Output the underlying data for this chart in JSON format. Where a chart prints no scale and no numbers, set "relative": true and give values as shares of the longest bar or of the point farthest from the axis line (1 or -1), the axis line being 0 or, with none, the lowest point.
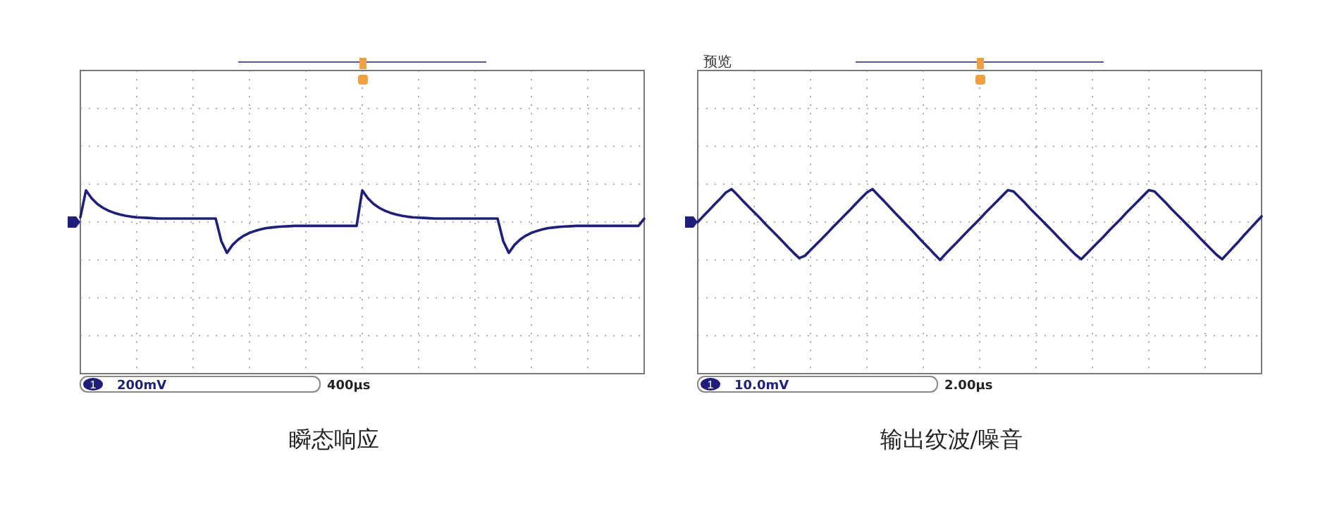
{
  "chart_data": [
    {
      "type": "line",
      "title": "瞬态响应",
      "relative": true,
      "grid": true,
      "annotations": [
        "1",
        "200mV",
        "400µs"
      ],
      "categories": [
        null,
        null,
        null,
        null,
        null,
        null,
        null,
        null,
        null,
        null,
        null,
        null,
        null,
        null,
        null,
        null,
        null,
        null,
        null,
        null,
        null,
        null,
        null,
        null,
        null,
        null,
        null,
        null,
        null,
        null,
        null,
        null,
        null,
        null,
        null,
        null,
        null,
        null,
        null,
        null,
        null,
        null,
        null,
        null,
        null,
        null,
        null,
        null,
        null,
        null,
        null,
        null,
        null,
        null,
        null,
        null,
        null,
        null,
        null,
        null,
        null,
        null,
        null,
        null,
        null,
        null,
        null,
        null,
        null,
        null,
        null,
        null,
        null,
        null,
        null,
        null,
        null,
        null,
        null,
        null,
        null,
        null,
        null,
        null,
        null,
        null,
        null,
        null,
        null,
        null,
        null,
        null,
        null,
        null,
        null,
        null,
        null,
        null,
        null,
        null,
        null
      ],
      "series": [
        {
          "color": "#1f1f7a",
          "values": [
            0.15,
            1,
            0.75,
            0.57,
            0.45,
            0.36,
            0.29,
            0.24,
            0.2,
            0.17,
            0.15,
            0.14,
            0.13,
            0.12,
            0.11,
            0.11,
            0.11,
            0.11,
            0.11,
            0.11,
            0.11,
            0.11,
            0.11,
            0.11,
            0.11,
            -0.6,
            -0.97,
            -0.72,
            -0.55,
            -0.43,
            -0.34,
            -0.28,
            -0.23,
            -0.19,
            -0.17,
            -0.15,
            -0.14,
            -0.13,
            -0.12,
            -0.12,
            -0.12,
            -0.12,
            -0.12,
            -0.12,
            -0.12,
            -0.12,
            -0.12,
            -0.12,
            -0.12,
            -0.12,
            1,
            0.75,
            0.57,
            0.45,
            0.36,
            0.29,
            0.24,
            0.2,
            0.17,
            0.15,
            0.14,
            0.13,
            0.12,
            0.11,
            0.11,
            0.11,
            0.11,
            0.11,
            0.11,
            0.11,
            0.11,
            0.11,
            0.11,
            0.11,
            0.11,
            -0.6,
            -0.97,
            -0.72,
            -0.55,
            -0.43,
            -0.34,
            -0.28,
            -0.23,
            -0.19,
            -0.17,
            -0.15,
            -0.14,
            -0.13,
            -0.12,
            -0.12,
            -0.12,
            -0.12,
            -0.12,
            -0.12,
            -0.12,
            -0.12,
            -0.12,
            -0.12,
            -0.12,
            -0.12,
            0.11
          ]
        }
      ]
    },
    {
      "type": "line",
      "title": "输出纹波/噪音",
      "relative": true,
      "grid": true,
      "annotations": [
        "预览",
        "1",
        "10.0mV",
        "2.00µs"
      ],
      "categories": [
        null,
        null,
        null,
        null,
        null,
        null,
        null,
        null,
        null,
        null,
        null,
        null,
        null,
        null,
        null,
        null,
        null,
        null,
        null,
        null,
        null,
        null,
        null,
        null,
        null,
        null,
        null,
        null,
        null,
        null,
        null,
        null,
        null,
        null,
        null,
        null,
        null,
        null,
        null,
        null,
        null,
        null,
        null,
        null,
        null,
        null,
        null,
        null,
        null,
        null,
        null,
        null,
        null,
        null,
        null,
        null,
        null,
        null,
        null,
        null,
        null,
        null,
        null,
        null,
        null,
        null,
        null,
        null,
        null,
        null,
        null,
        null,
        null,
        null,
        null,
        null,
        null,
        null,
        null,
        null,
        null,
        null,
        null,
        null,
        null,
        null,
        null,
        null,
        null,
        null,
        null,
        null,
        null,
        null,
        null,
        null,
        null,
        null,
        null,
        null,
        null
      ],
      "series": [
        {
          "color": "#1f1f7a",
          "values": [
            0,
            0.16,
            0.31,
            0.47,
            0.62,
            0.78,
            0.87,
            0.72,
            0.56,
            0.41,
            0.26,
            0.11,
            -0.05,
            -0.2,
            -0.35,
            -0.5,
            -0.66,
            -0.81,
            -0.95,
            -0.89,
            -0.74,
            -0.59,
            -0.44,
            -0.29,
            -0.13,
            0.02,
            0.17,
            0.32,
            0.48,
            0.63,
            0.78,
            0.87,
            0.71,
            0.56,
            0.4,
            0.24,
            0.09,
            -0.07,
            -0.22,
            -0.38,
            -0.54,
            -0.69,
            -0.85,
            -1,
            -0.83,
            -0.68,
            -0.53,
            -0.37,
            -0.22,
            -0.07,
            0.08,
            0.24,
            0.39,
            0.54,
            0.69,
            0.84,
            0.81,
            0.66,
            0.51,
            0.35,
            0.2,
            0.05,
            -0.1,
            -0.25,
            -0.41,
            -0.56,
            -0.71,
            -0.86,
            -0.98,
            -0.83,
            -0.68,
            -0.53,
            -0.38,
            -0.22,
            -0.07,
            0.08,
            0.24,
            0.39,
            0.54,
            0.69,
            0.84,
            0.81,
            0.66,
            0.51,
            0.35,
            0.2,
            0.05,
            -0.1,
            -0.25,
            -0.41,
            -0.56,
            -0.71,
            -0.86,
            -0.98,
            -0.82,
            -0.66,
            -0.5,
            -0.33,
            -0.17,
            -0.01,
            0.15
          ]
        }
      ]
    }
  ]
}
